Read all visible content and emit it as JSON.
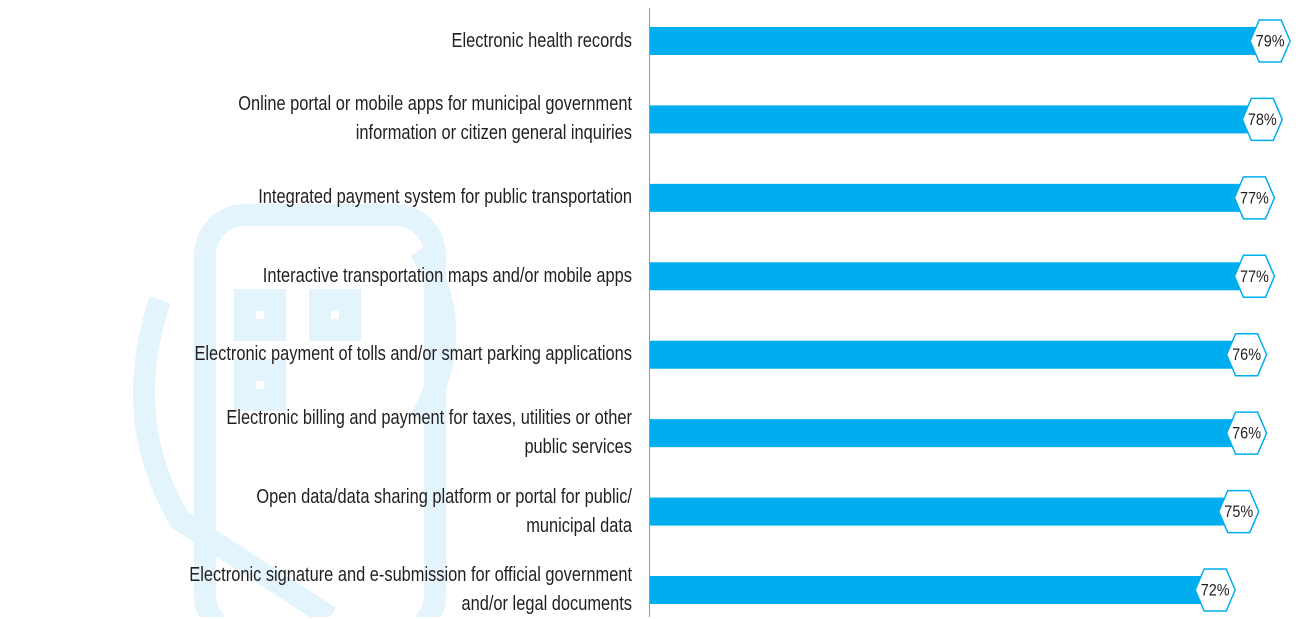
{
  "chart_data": {
    "type": "bar",
    "orientation": "horizontal",
    "categories": [
      "Electronic health records",
      "Online portal or mobile apps for municipal government\ninformation or citizen general inquiries",
      "Integrated payment system for public transportation",
      "Interactive transportation maps and/or mobile apps",
      "Electronic payment of tolls and/or smart parking applications",
      "Electronic billing and payment for taxes, utilities or other\npublic services",
      "Open data/data sharing platform or portal for public/\nmunicipal data",
      "Electronic signature and e-submission for official government\nand/or legal documents"
    ],
    "values": [
      79,
      78,
      77,
      77,
      76,
      76,
      75,
      72
    ],
    "value_labels": [
      "79%",
      "78%",
      "77%",
      "77%",
      "76%",
      "76%",
      "75%",
      "72%"
    ],
    "color": "#00aeef",
    "xlim": [
      0,
      80
    ]
  }
}
